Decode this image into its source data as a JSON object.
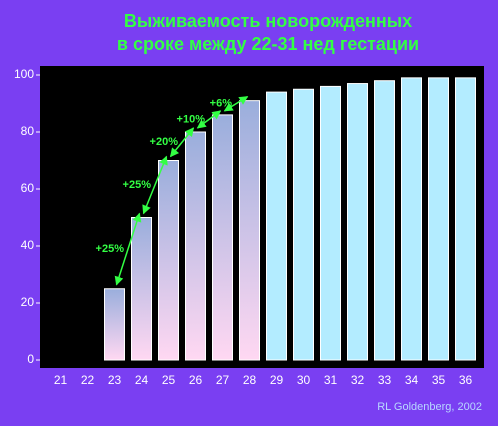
{
  "chart_data": {
    "type": "bar",
    "title": [
      "Выживаемость новорожденных",
      "в сроке между 22-31 нед гестации"
    ],
    "categories": [
      "21",
      "22",
      "23",
      "24",
      "25",
      "26",
      "27",
      "28",
      "29",
      "30",
      "31",
      "32",
      "33",
      "34",
      "35",
      "36"
    ],
    "values": [
      null,
      null,
      25,
      50,
      70,
      80,
      86,
      91,
      94,
      95,
      96,
      97,
      98,
      99,
      99,
      99
    ],
    "colors": [
      "#9aaedc",
      "#9aaedc",
      "#9aaedc",
      "#9aaedc",
      "#9aaedc",
      "#9aaedc",
      "#9aaedc",
      "#9aaedc",
      "#b3ecff",
      "#b3ecff",
      "#b3ecff",
      "#b3ecff",
      "#b3ecff",
      "#b3ecff",
      "#b3ecff",
      "#b3ecff"
    ],
    "colors_bottom": [
      "#ffd8f2",
      "#ffd8f2",
      "#ffd8f2",
      "#ffd8f2",
      "#ffd8f2",
      "#ffd8f2",
      "#ffd8f2",
      "#ffd8f2",
      "#b3ecff",
      "#b3ecff",
      "#b3ecff",
      "#b3ecff",
      "#b3ecff",
      "#b3ecff",
      "#b3ecff",
      "#b3ecff"
    ],
    "annotations": [
      "+25%",
      "+25%",
      "+20%",
      "+10%",
      "+6%"
    ],
    "source": "RL Goldenberg, 2002",
    "ylim": [
      0,
      100
    ],
    "yticks": [
      0,
      20,
      40,
      60,
      80,
      100
    ]
  }
}
